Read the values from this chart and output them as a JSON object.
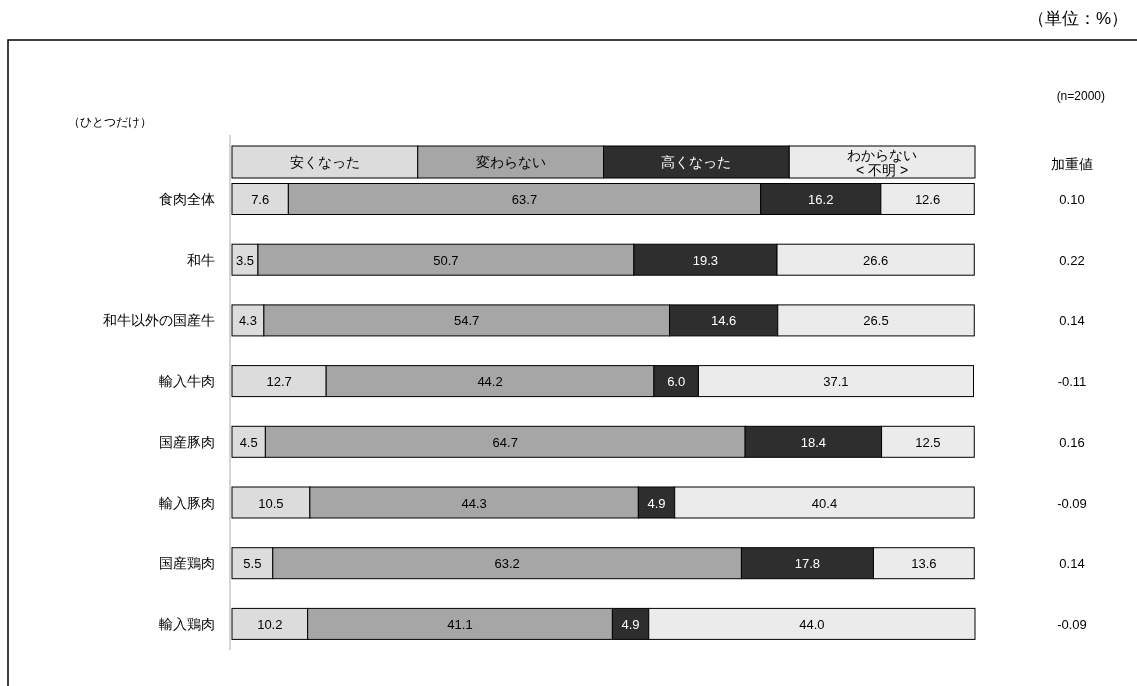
{
  "chart_data": {
    "type": "bar",
    "orientation": "horizontal",
    "stacked": true,
    "legend": "top",
    "categories": [
      "食肉全体",
      "和牛",
      "和牛以外の国産牛",
      "輸入牛肉",
      "国産豚肉",
      "輸入豚肉",
      "国産鶏肉",
      "輸入鶏肉"
    ],
    "series": [
      {
        "name": "安くなった",
        "color": "#dcdcdc",
        "values": [
          7.6,
          3.5,
          4.3,
          12.7,
          4.5,
          10.5,
          5.5,
          10.2
        ],
        "value_labels": [
          "7.6",
          "3.5",
          "4.3",
          "12.7",
          "4.5",
          "10.5",
          "5.5",
          "10.2"
        ]
      },
      {
        "name": "変わらない",
        "color": "#a6a6a6",
        "values": [
          63.7,
          50.7,
          54.7,
          44.2,
          64.7,
          44.3,
          63.2,
          41.1
        ],
        "value_labels": [
          "63.7",
          "50.7",
          "54.7",
          "44.2",
          "64.7",
          "44.3",
          "63.2",
          "41.1"
        ]
      },
      {
        "name": "高くなった",
        "color": "#2e2e2e",
        "values": [
          16.2,
          19.3,
          14.6,
          6.0,
          18.4,
          4.9,
          17.8,
          4.9
        ],
        "value_labels": [
          "16.2",
          "19.3",
          "14.6",
          "6.0",
          "18.4",
          "4.9",
          "17.8",
          "4.9"
        ]
      },
      {
        "name": "わからない\n< 不明 >",
        "color": "#ebebeb",
        "values": [
          12.6,
          26.6,
          26.5,
          37.1,
          12.5,
          40.4,
          13.6,
          44.0
        ],
        "value_labels": [
          "12.6",
          "26.6",
          "26.5",
          "37.1",
          "12.5",
          "40.4",
          "13.6",
          "44.0"
        ]
      }
    ],
    "annotations": [
      "（単位：%）",
      "(n=2000)",
      "（ひとつだけ）",
      "加重値",
      "0.10",
      "0.22",
      "0.14",
      "-0.11",
      "0.16",
      "-0.09",
      "0.14",
      "-0.09"
    ]
  }
}
